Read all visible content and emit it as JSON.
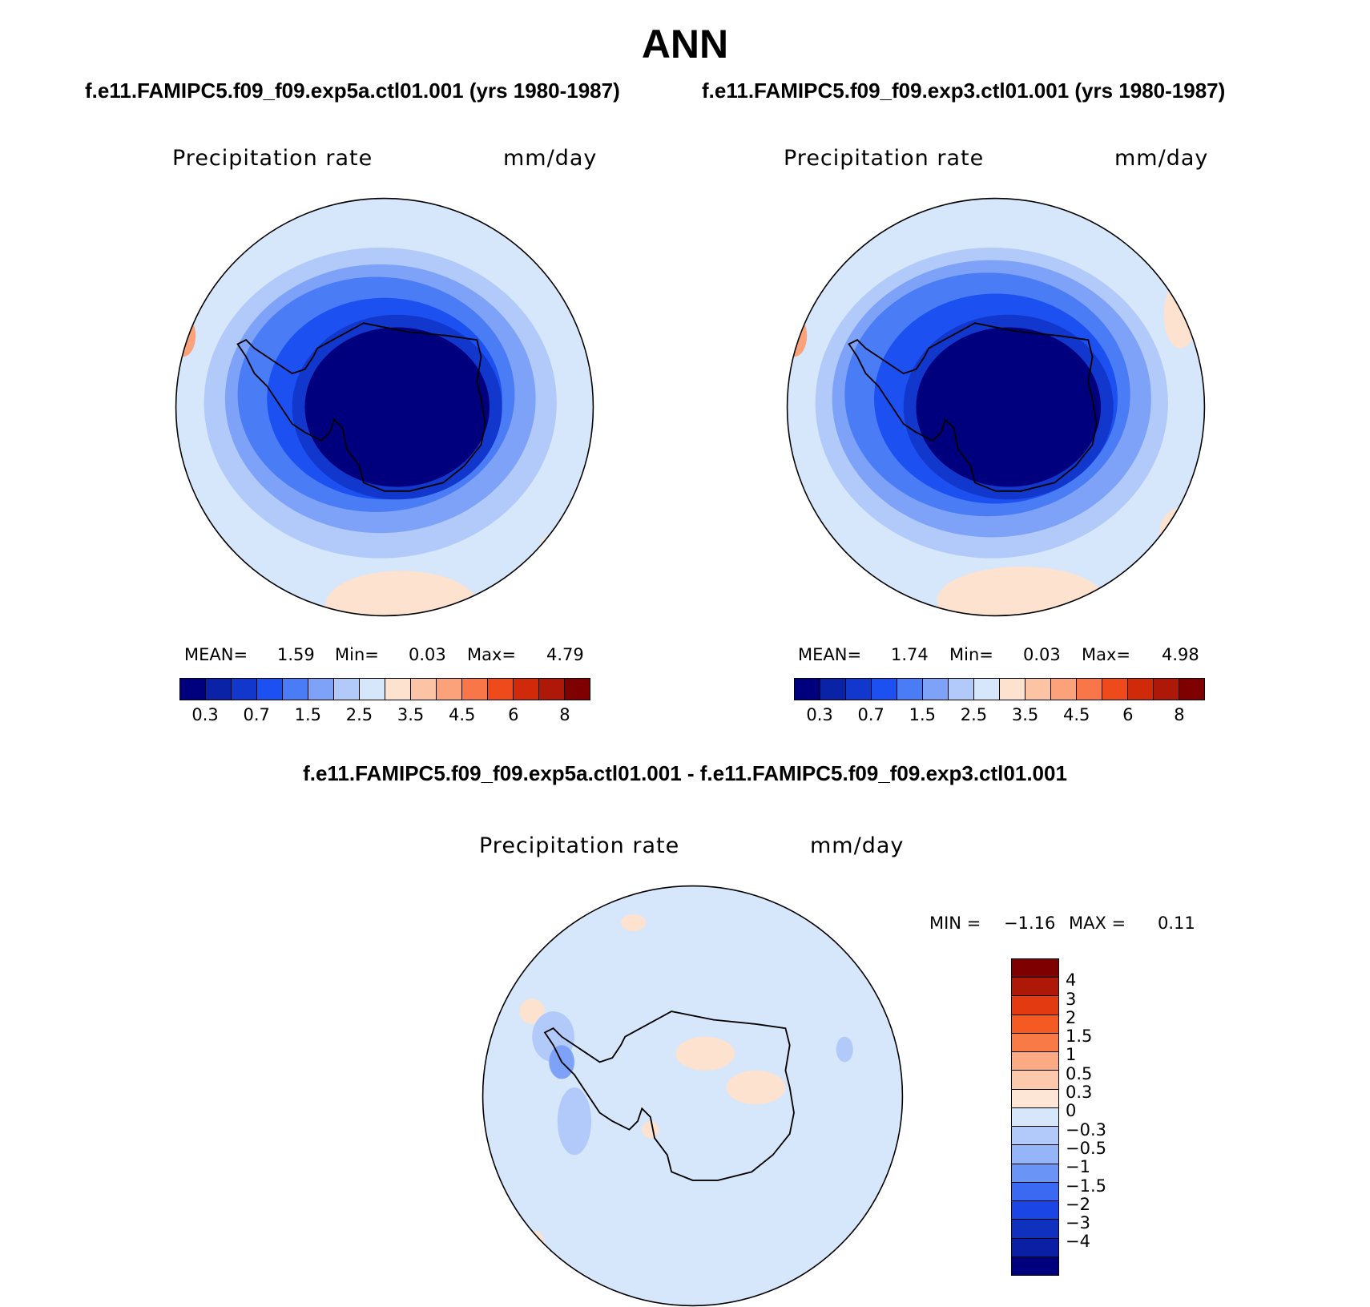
{
  "title": "ANN",
  "panels": [
    {
      "case_title": "f.e11.FAMIPC5.f09_f09.exp5a.ctl01.001 (yrs 1980-1987)",
      "variable": "Precipitation rate",
      "units": "mm/day",
      "mean_label": "MEAN=",
      "mean": "1.59",
      "min_label": "Min=",
      "min": "0.03",
      "max_label": "Max=",
      "max": "4.79"
    },
    {
      "case_title": "f.e11.FAMIPC5.f09_f09.exp3.ctl01.001 (yrs 1980-1987)",
      "variable": "Precipitation rate",
      "units": "mm/day",
      "mean_label": "MEAN=",
      "mean": "1.74",
      "min_label": "Min=",
      "min": "0.03",
      "max_label": "Max=",
      "max": "4.98"
    }
  ],
  "diff": {
    "title": "f.e11.FAMIPC5.f09_f09.exp5a.ctl01.001 - f.e11.FAMIPC5.f09_f09.exp3.ctl01.001",
    "variable": "Precipitation rate",
    "units": "mm/day",
    "min_label": "MIN =",
    "min": "−1.16",
    "max_label": "MAX =",
    "max": "0.11"
  },
  "colorbar": {
    "colors": [
      "#00007f",
      "#0a23a6",
      "#1237cc",
      "#1c50f0",
      "#4a7cf5",
      "#7ea2f7",
      "#b2cafa",
      "#d6e6fb",
      "#fde2cf",
      "#fcc4a5",
      "#fba27a",
      "#f87647",
      "#ee4a1c",
      "#d12a0a",
      "#ad1808",
      "#7f0000"
    ],
    "tick_labels": [
      "0.3",
      "0.7",
      "1.5",
      "2.5",
      "3.5",
      "4.5",
      "6",
      "8"
    ]
  },
  "diff_colorbar": {
    "colors": [
      "#7f0000",
      "#ad1808",
      "#e33a12",
      "#f65a23",
      "#f87a46",
      "#fbaa84",
      "#fcc9ad",
      "#fde6d5",
      "#d6e6fb",
      "#b2cafa",
      "#95b5f8",
      "#6a94f6",
      "#3a6af3",
      "#1c45e5",
      "#1030c0",
      "#0a1fa3",
      "#00007f"
    ],
    "tick_labels": [
      "4",
      "3",
      "2",
      "1.5",
      "1",
      "0.5",
      "0.3",
      "0",
      "−0.3",
      "−0.5",
      "−1",
      "−1.5",
      "−2",
      "−3",
      "−4"
    ]
  }
}
